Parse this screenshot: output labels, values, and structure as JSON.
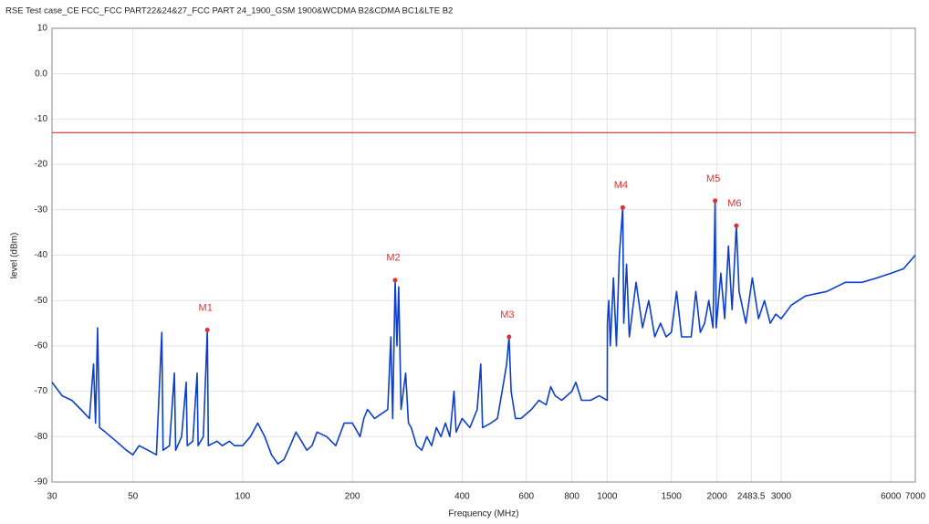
{
  "chart_data": {
    "type": "line",
    "title": "RSE Test case_CE FCC_FCC PART22&24&27_FCC PART 24_1900_GSM 1900&WCDMA B2&CDMA BC1&LTE B2",
    "x_label": "Frequency (MHz)",
    "y_label": "level (dBm)",
    "x_scale": "log",
    "grid": true,
    "xlim": [
      30,
      7000
    ],
    "ylim": [
      -90,
      10
    ],
    "xticks": [
      30,
      50,
      100,
      200,
      400,
      600,
      800,
      1000,
      1500,
      2000,
      2483.5,
      3000,
      6000,
      7000
    ],
    "yticks": [
      10,
      {
        "value": 0,
        "label": "0.0"
      },
      -10,
      -20,
      -30,
      -40,
      -50,
      -60,
      -70,
      -80,
      -90
    ],
    "limit_line": {
      "value": -13,
      "color": "#e03030"
    },
    "series": [
      {
        "color": "#0b3fcc",
        "x": [
          30,
          32,
          34,
          36,
          38,
          39,
          39.5,
          40,
          40.5,
          42,
          45,
          48,
          50,
          52,
          55,
          58,
          60,
          60.5,
          63,
          65,
          65.5,
          68,
          70,
          70.5,
          73,
          75,
          75.5,
          78,
          80,
          80.5,
          85,
          88,
          92,
          95,
          100,
          105,
          110,
          115,
          120,
          125,
          130,
          135,
          140,
          145,
          150,
          155,
          160,
          170,
          180,
          190,
          200,
          210,
          215,
          220,
          230,
          240,
          250,
          255,
          258,
          262,
          265,
          268,
          272,
          280,
          285,
          290,
          300,
          310,
          320,
          330,
          340,
          350,
          360,
          370,
          380,
          385,
          400,
          420,
          440,
          450,
          455,
          480,
          500,
          520,
          530,
          538,
          545,
          560,
          580,
          600,
          620,
          650,
          680,
          700,
          720,
          750,
          800,
          820,
          850,
          900,
          950,
          1000,
          1001,
          1010,
          1020,
          1040,
          1060,
          1080,
          1103,
          1110,
          1130,
          1150,
          1200,
          1250,
          1300,
          1350,
          1400,
          1450,
          1500,
          1550,
          1600,
          1700,
          1750,
          1800,
          1850,
          1900,
          1950,
          1977,
          1990,
          2050,
          2100,
          2150,
          2200,
          2260,
          2300,
          2400,
          2500,
          2600,
          2700,
          2800,
          2900,
          3000,
          3200,
          3500,
          4000,
          4500,
          5000,
          5500,
          6000,
          6500,
          7000
        ],
        "values": [
          -68,
          -71,
          -72,
          -74,
          -76,
          -64,
          -77,
          -56,
          -78,
          -79,
          -81,
          -83,
          -84,
          -82,
          -83,
          -84,
          -57,
          -83,
          -82,
          -66,
          -83,
          -80,
          -68,
          -82,
          -81,
          -66,
          -82,
          -80,
          -56.5,
          -82,
          -81,
          -82,
          -81,
          -82,
          -82,
          -80,
          -77,
          -80,
          -84,
          -86,
          -85,
          -82,
          -79,
          -81,
          -83,
          -82,
          -79,
          -80,
          -82,
          -77,
          -77,
          -80,
          -76,
          -74,
          -76,
          -75,
          -74,
          -58,
          -76,
          -45.5,
          -60,
          -47,
          -74,
          -66,
          -77,
          -78,
          -82,
          -83,
          -80,
          -82,
          -78,
          -80,
          -77,
          -80,
          -70,
          -79,
          -76,
          -78,
          -74,
          -64,
          -78,
          -77,
          -76,
          -68,
          -64,
          -58,
          -70,
          -76,
          -76,
          -75,
          -74,
          -72,
          -73,
          -69,
          -71,
          -72,
          -70,
          -68,
          -72,
          -72,
          -71,
          -72,
          -55,
          -50,
          -60,
          -45,
          -60,
          -40,
          -29.5,
          -55,
          -42,
          -58,
          -46,
          -56,
          -50,
          -58,
          -55,
          -58,
          -57,
          -48,
          -58,
          -58,
          -48,
          -57,
          -55,
          -50,
          -56,
          -28,
          -56,
          -44,
          -54,
          -38,
          -52,
          -33.5,
          -48,
          -55,
          -45,
          -54,
          -50,
          -55,
          -53,
          -54,
          -51,
          -49,
          -48,
          -46,
          -46,
          -45,
          -44,
          -43,
          -40
        ]
      }
    ],
    "markers": [
      {
        "label": "M1",
        "x": 80,
        "y": -56.5
      },
      {
        "label": "M2",
        "x": 262,
        "y": -45.5
      },
      {
        "label": "M3",
        "x": 538,
        "y": -58
      },
      {
        "label": "M4",
        "x": 1103,
        "y": -29.5
      },
      {
        "label": "M5",
        "x": 1977,
        "y": -28
      },
      {
        "label": "M6",
        "x": 2260,
        "y": -33.5
      }
    ],
    "marker_color": "#e03030"
  }
}
